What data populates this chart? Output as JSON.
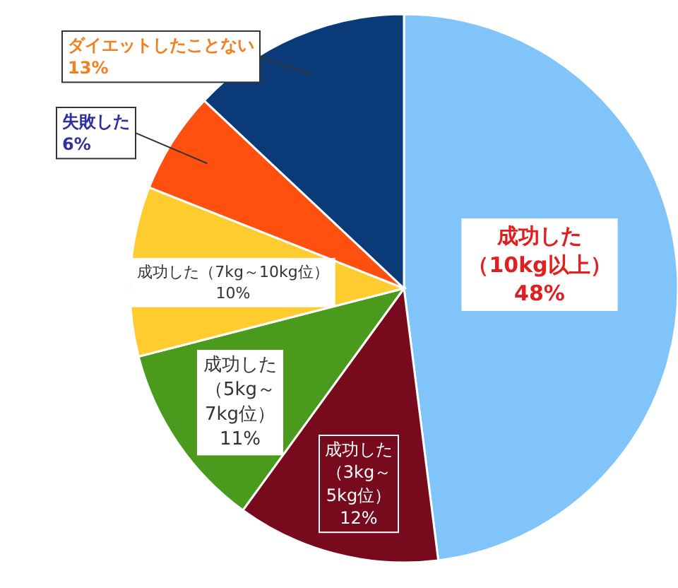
{
  "chart_data": {
    "type": "pie",
    "categories": [
      "成功した（10kg以上）",
      "成功した（3kg～5kg位）",
      "成功した（5kg～7kg位）",
      "成功した（7kg～10kg位）",
      "失敗した",
      "ダイエットしたことない"
    ],
    "values": [
      48,
      12,
      11,
      10,
      6,
      13
    ],
    "value_labels": [
      "48%",
      "12%",
      "11%",
      "10%",
      "6%",
      "13%"
    ],
    "colors": [
      "#80c4fa",
      "#780a1e",
      "#4a9a1e",
      "#ffcc30",
      "#ff5010",
      "#0a3a78"
    ]
  }
}
